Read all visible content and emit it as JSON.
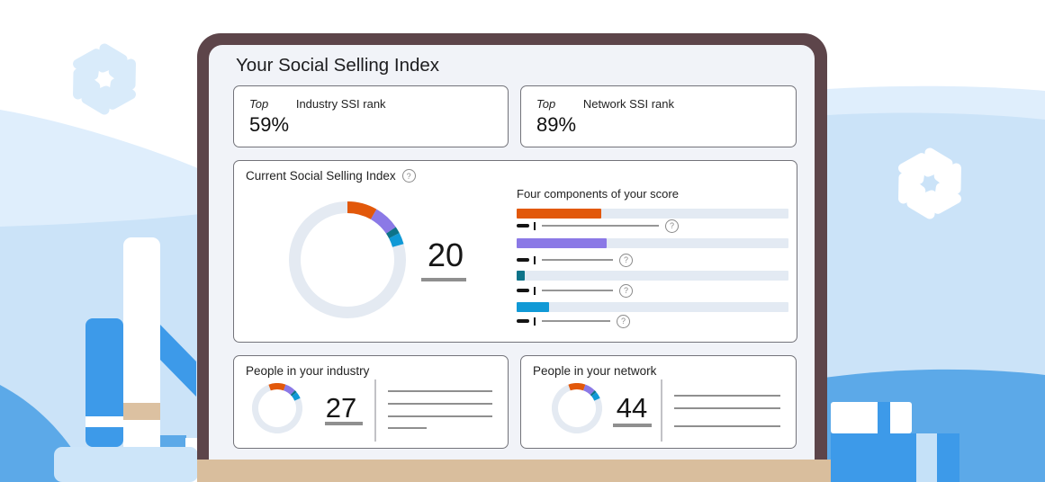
{
  "icons": {
    "help_glyph": "?"
  },
  "palette": {
    "laptop_frame": "#5D454A",
    "laptop_base_tan": "#D9BE9D",
    "screen_bg": "#F1F3F8",
    "sky_light_blue": "#DFEEFC",
    "sky_blue": "#CBE3F8",
    "wave_blue": "#5CA9E8",
    "building_blue": "#3D9AE9",
    "building_tan": "#DCC1A1"
  },
  "dashboard": {
    "title": "Your Social Selling Index",
    "rank_cards": [
      {
        "prefix": "Top",
        "label": "Industry SSI rank",
        "value": "59%"
      },
      {
        "prefix": "Top",
        "label": "Network SSI rank",
        "value": "89%"
      }
    ],
    "ssi_card": {
      "title": "Current Social Selling Index",
      "score": "20",
      "components_title": "Four components of your score",
      "components": [
        {
          "color": "#E2580A",
          "fill": "31%"
        },
        {
          "color": "#8B79E6",
          "fill": "33%"
        },
        {
          "color": "#0D7389",
          "fill": "3%"
        },
        {
          "color": "#1099D6",
          "fill": "12%"
        }
      ]
    },
    "people_cards": [
      {
        "title": "People in your industry",
        "value": "27"
      },
      {
        "title": "People in your network",
        "value": "44"
      }
    ]
  },
  "donuts": {
    "main": {
      "track": "#E4EAF2",
      "segments": [
        {
          "color": "#E2580A",
          "pct": 8.3
        },
        {
          "color": "#8B79E6",
          "pct": 7.2
        },
        {
          "color": "#0D7389",
          "pct": 1.9
        },
        {
          "color": "#1099D6",
          "pct": 3.2
        }
      ]
    },
    "small": {
      "track": "#E4EAF2",
      "segments": [
        {
          "color": "#E2580A",
          "pct": 11
        },
        {
          "color": "#8B79E6",
          "pct": 7
        },
        {
          "color": "#0D7389",
          "pct": 1.5
        },
        {
          "color": "#1099D6",
          "pct": 4.5
        }
      ]
    }
  }
}
